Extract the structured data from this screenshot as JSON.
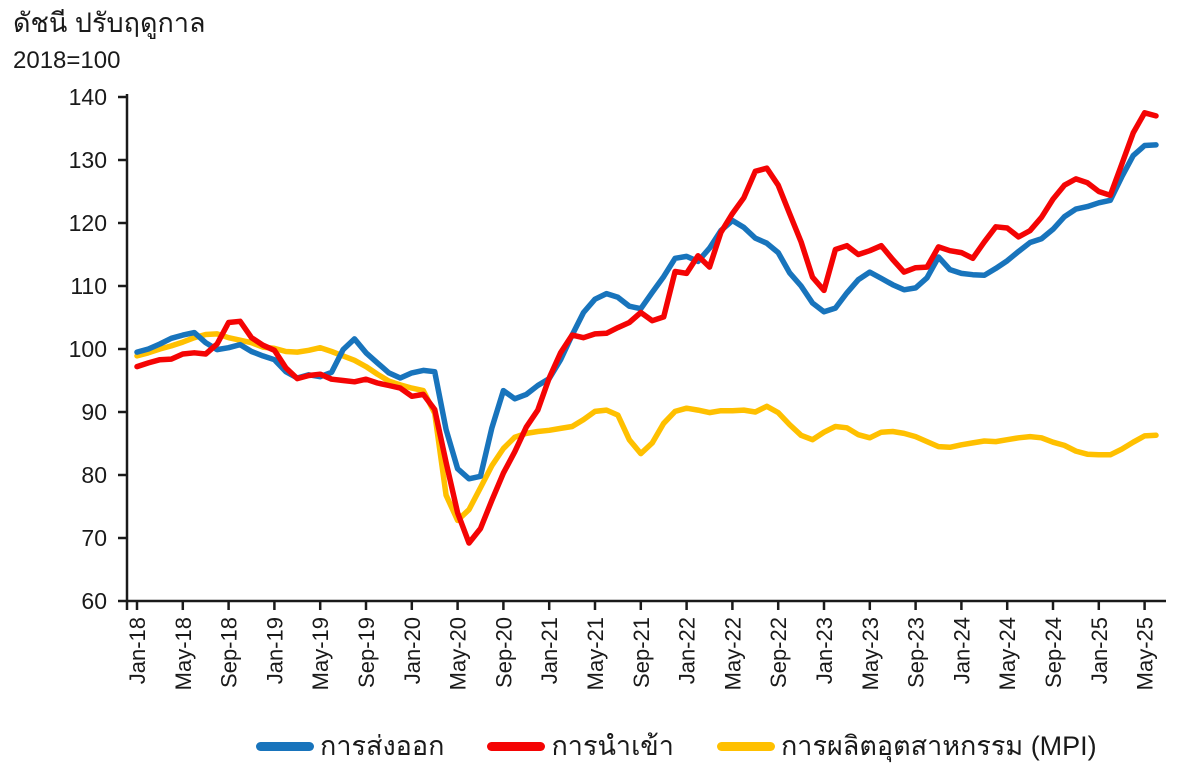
{
  "title": {
    "line1": "ดัชนี ปรับฤดูกาล",
    "line2": "2018=100"
  },
  "legend": {
    "items": [
      {
        "key": "exports",
        "label": "การส่งออก",
        "color": "#1874BC"
      },
      {
        "key": "imports",
        "label": "การนำเข้า",
        "color": "#F40404"
      },
      {
        "key": "mpi",
        "label": "การผลิตอุตสาหกรรม (MPI)",
        "color": "#FFC000"
      }
    ]
  },
  "axis": {
    "color": "#1a1a1a"
  },
  "chart_data": {
    "type": "line",
    "title": "ดัชนี ปรับฤดูกาล",
    "subtitle": "2018=100",
    "x_unit": "month",
    "x_start": "Jan-18",
    "x_end": "Jun-25",
    "ylim": [
      60,
      140
    ],
    "y_ticks": [
      60,
      70,
      80,
      90,
      100,
      110,
      120,
      130,
      140
    ],
    "x_tick_every": 4,
    "x_tick_labels": [
      "Jan-18",
      "May-18",
      "Sep-18",
      "Jan-19",
      "May-19",
      "Sep-19",
      "Jan-20",
      "May-20",
      "Sep-20",
      "Jan-21",
      "May-21",
      "Sep-21",
      "Jan-22",
      "May-22",
      "Sep-22",
      "Jan-23",
      "May-23",
      "Sep-23",
      "Jan-24",
      "May-24",
      "Sep-24",
      "Jan-25",
      "May-25"
    ],
    "grid": false,
    "legend_position": "bottom",
    "draw_order": [
      "mpi",
      "exports",
      "imports"
    ],
    "series": [
      {
        "key": "exports",
        "name": "การส่งออก",
        "color": "#1874BC",
        "values": [
          99.5,
          100.0,
          100.8,
          101.7,
          102.2,
          102.6,
          101.0,
          99.9,
          100.2,
          100.7,
          99.6,
          98.9,
          98.3,
          96.4,
          95.4,
          95.9,
          95.6,
          96.3,
          99.9,
          101.6,
          99.4,
          97.8,
          96.2,
          95.4,
          96.2,
          96.6,
          96.4,
          87.2,
          81.0,
          79.4,
          79.8,
          87.5,
          93.4,
          92.1,
          92.8,
          94.2,
          95.3,
          98.3,
          102.2,
          105.8,
          107.9,
          108.8,
          108.2,
          106.8,
          106.4,
          109.0,
          111.5,
          114.4,
          114.7,
          113.9,
          116.0,
          118.8,
          120.4,
          119.3,
          117.6,
          116.8,
          115.3,
          112.1,
          110.0,
          107.3,
          105.9,
          106.5,
          108.9,
          111.0,
          112.2,
          111.2,
          110.2,
          109.4,
          109.7,
          111.3,
          114.6,
          112.6,
          112.0,
          111.8,
          111.7,
          112.8,
          114.0,
          115.5,
          116.9,
          117.5,
          119.0,
          121.0,
          122.2,
          122.6,
          123.2,
          123.6,
          127.3,
          130.7,
          132.3,
          132.4
        ]
      },
      {
        "key": "imports",
        "name": "การนำเข้า",
        "color": "#F40404",
        "values": [
          97.2,
          97.8,
          98.3,
          98.4,
          99.2,
          99.4,
          99.2,
          100.8,
          104.2,
          104.4,
          101.8,
          100.6,
          99.8,
          97.0,
          95.3,
          95.8,
          96.0,
          95.2,
          95.0,
          94.8,
          95.2,
          94.6,
          94.2,
          93.8,
          92.5,
          92.8,
          90.4,
          82.0,
          74.0,
          69.2,
          71.5,
          76.0,
          80.3,
          83.7,
          87.6,
          90.3,
          95.4,
          99.4,
          102.2,
          101.8,
          102.4,
          102.5,
          103.4,
          104.2,
          105.8,
          104.5,
          105.1,
          112.3,
          112.0,
          114.8,
          113.0,
          118.5,
          121.5,
          124.0,
          128.2,
          128.7,
          126.0,
          121.5,
          117.0,
          111.4,
          109.3,
          115.8,
          116.4,
          115.0,
          115.6,
          116.4,
          114.2,
          112.2,
          112.9,
          113.0,
          116.2,
          115.6,
          115.3,
          114.4,
          117.0,
          119.4,
          119.2,
          117.8,
          118.8,
          120.9,
          123.8,
          126.0,
          127.0,
          126.4,
          125.0,
          124.4,
          129.3,
          134.3,
          137.5,
          137.0
        ]
      },
      {
        "key": "mpi",
        "name": "การผลิตอุตสาหกรรม (MPI)",
        "color": "#FFC000",
        "values": [
          98.9,
          99.4,
          100.0,
          100.5,
          101.1,
          101.8,
          102.3,
          102.4,
          101.8,
          101.4,
          101.0,
          100.3,
          100.1,
          99.6,
          99.5,
          99.8,
          100.2,
          99.6,
          98.9,
          98.2,
          97.2,
          96.0,
          94.9,
          94.3,
          93.8,
          93.4,
          89.8,
          76.8,
          72.8,
          74.5,
          78.0,
          81.5,
          84.2,
          86.0,
          86.6,
          86.9,
          87.1,
          87.4,
          87.7,
          88.8,
          90.1,
          90.3,
          89.5,
          85.6,
          83.4,
          85.1,
          88.2,
          90.1,
          90.6,
          90.3,
          89.9,
          90.2,
          90.2,
          90.3,
          90.0,
          90.9,
          89.9,
          88.0,
          86.3,
          85.6,
          86.8,
          87.7,
          87.5,
          86.4,
          85.9,
          86.8,
          86.9,
          86.6,
          86.1,
          85.3,
          84.5,
          84.4,
          84.8,
          85.1,
          85.4,
          85.3,
          85.6,
          85.9,
          86.1,
          85.9,
          85.2,
          84.7,
          83.8,
          83.3,
          83.2,
          83.2,
          84.1,
          85.2,
          86.2,
          86.3
        ]
      }
    ]
  }
}
